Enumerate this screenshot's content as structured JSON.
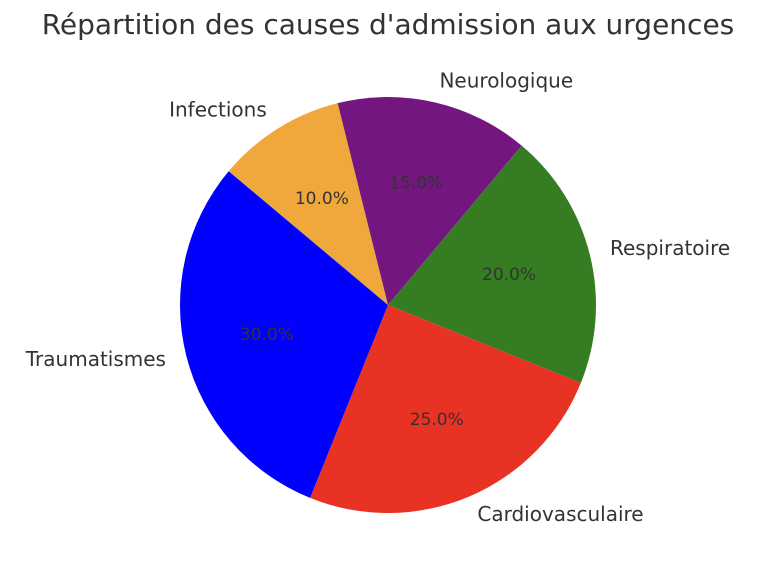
{
  "chart_data": {
    "type": "pie",
    "title": "Répartition des causes d'admission aux urgences",
    "categories": [
      "Infections",
      "Neurologique",
      "Respiratoire",
      "Cardiovasculaire",
      "Traumatismes"
    ],
    "values": [
      10,
      15,
      20,
      25,
      30
    ],
    "value_labels": [
      "10.0%",
      "15.0%",
      "20.0%",
      "25.0%",
      "30.0%"
    ],
    "colors": [
      "#f0a83c",
      "#741680",
      "#367c23",
      "#e83223",
      "#0000ff"
    ]
  }
}
